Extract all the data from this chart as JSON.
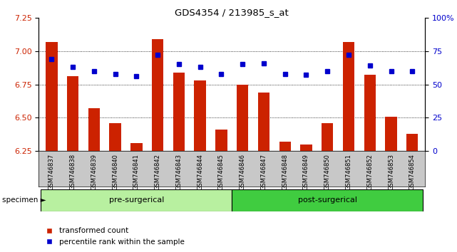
{
  "title": "GDS4354 / 213985_s_at",
  "specimens": [
    "GSM746837",
    "GSM746838",
    "GSM746839",
    "GSM746840",
    "GSM746841",
    "GSM746842",
    "GSM746843",
    "GSM746844",
    "GSM746845",
    "GSM746846",
    "GSM746847",
    "GSM746848",
    "GSM746849",
    "GSM746850",
    "GSM746851",
    "GSM746852",
    "GSM746853",
    "GSM746854"
  ],
  "bar_values": [
    7.07,
    6.81,
    6.57,
    6.46,
    6.31,
    7.09,
    6.84,
    6.78,
    6.41,
    6.75,
    6.69,
    6.32,
    6.3,
    6.46,
    7.07,
    6.82,
    6.51,
    6.38
  ],
  "percentile_values": [
    69,
    63,
    60,
    58,
    56,
    72,
    65,
    63,
    58,
    65,
    66,
    58,
    57,
    60,
    72,
    64,
    60,
    60
  ],
  "groups": [
    {
      "label": "pre-surgerical",
      "start": 0,
      "end": 8,
      "color": "#b8f0a0"
    },
    {
      "label": "post-surgerical",
      "start": 9,
      "end": 17,
      "color": "#40cc40"
    }
  ],
  "ylim_left": [
    6.25,
    7.25
  ],
  "ylim_right": [
    0,
    100
  ],
  "bar_color": "#cc2200",
  "dot_color": "#0000cc",
  "bar_width": 0.55,
  "background_color": "#ffffff",
  "yticks_left": [
    6.25,
    6.5,
    6.75,
    7.0,
    7.25
  ],
  "yticks_right": [
    0,
    25,
    50,
    75,
    100
  ],
  "ytick_labels_right": [
    "0",
    "25",
    "50",
    "75",
    "100%"
  ],
  "specimen_label": "specimen",
  "legend_items": [
    "transformed count",
    "percentile rank within the sample"
  ],
  "xtick_bg_color": "#c8c8c8"
}
